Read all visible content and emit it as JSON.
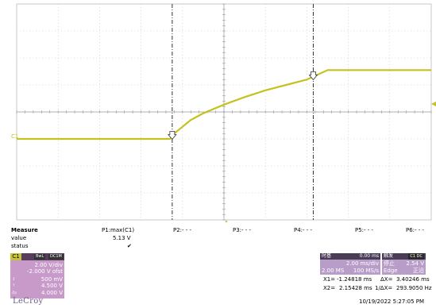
{
  "screen": {
    "channel_label": "C1",
    "cursor_markers": [
      "1",
      "2"
    ]
  },
  "measure": {
    "title": "Measure",
    "row_value_label": "value",
    "row_status_label": "status",
    "columns": [
      {
        "name": "P1:max(C1)",
        "value": "5.13 V",
        "status": "✔"
      },
      {
        "name": "P2:- - -",
        "value": "",
        "status": ""
      },
      {
        "name": "P3:- - -",
        "value": "",
        "status": ""
      },
      {
        "name": "P4:- - -",
        "value": "",
        "status": ""
      },
      {
        "name": "P5:- - -",
        "value": "",
        "status": ""
      },
      {
        "name": "P6:- - -",
        "value": "",
        "status": ""
      }
    ]
  },
  "channel": {
    "name": "C1",
    "badges": [
      "BwL",
      "DC1M"
    ],
    "volts_div": "2.00 V/div",
    "offset": "-2.000 V ofst",
    "rows": [
      {
        "key": "↕",
        "value": "500 mV"
      },
      {
        "key": "↑",
        "value": "4.500 V"
      },
      {
        "key": "Δy",
        "value": "4.000 V"
      }
    ]
  },
  "timebase": {
    "title": "时基",
    "delay": "0.00 ms",
    "time_div": "2.00 ms/div",
    "samples": "2.00 MS",
    "rate": "100 MS/s"
  },
  "trigger": {
    "title": "触发",
    "badge": "C1 DC",
    "mode": "停止",
    "level": "2.54 V",
    "type": "Edge",
    "slope": "正沿"
  },
  "cursors": {
    "x1_label": "X1=",
    "x1": "-1.24818 ms",
    "dx_label": "ΔX=",
    "dx": "3.40246 ms",
    "x2_label": "X2=",
    "x2": "2.15428 ms",
    "inv_dx_label": "1/ΔX=",
    "inv_dx": "293.9050 Hz"
  },
  "brand": "LeCroy",
  "timestamp": "10/19/2022 5:27:05 PM",
  "colors": {
    "trace": "#c5c21f",
    "grid": "#bdbdbd",
    "channel_panel": "#c79ac9",
    "timebase_panel": "#b89dc9"
  },
  "chart_data": {
    "type": "line",
    "title": "",
    "xlabel": "",
    "ylabel": "",
    "x_unit": "ms",
    "y_unit": "V",
    "xlim": [
      -5,
      5
    ],
    "ylim": [
      -6,
      10
    ],
    "grid": true,
    "series": [
      {
        "name": "",
        "x": [
          -5.0,
          -2.0,
          -1.3,
          -1.2,
          -1.0,
          -0.8,
          -0.5,
          0.0,
          0.5,
          1.0,
          1.5,
          2.0,
          2.5,
          3.0,
          4.0,
          5.0
        ],
        "y": [
          0.0,
          0.0,
          0.0,
          0.4,
          0.9,
          1.4,
          1.9,
          2.54,
          3.1,
          3.6,
          4.0,
          4.4,
          5.1,
          5.1,
          5.1,
          5.1
        ]
      }
    ],
    "cursors_ms": [
      -1.24818,
      2.15428
    ],
    "trigger_time_ms": 0.0,
    "trigger_level_v": 2.54
  }
}
